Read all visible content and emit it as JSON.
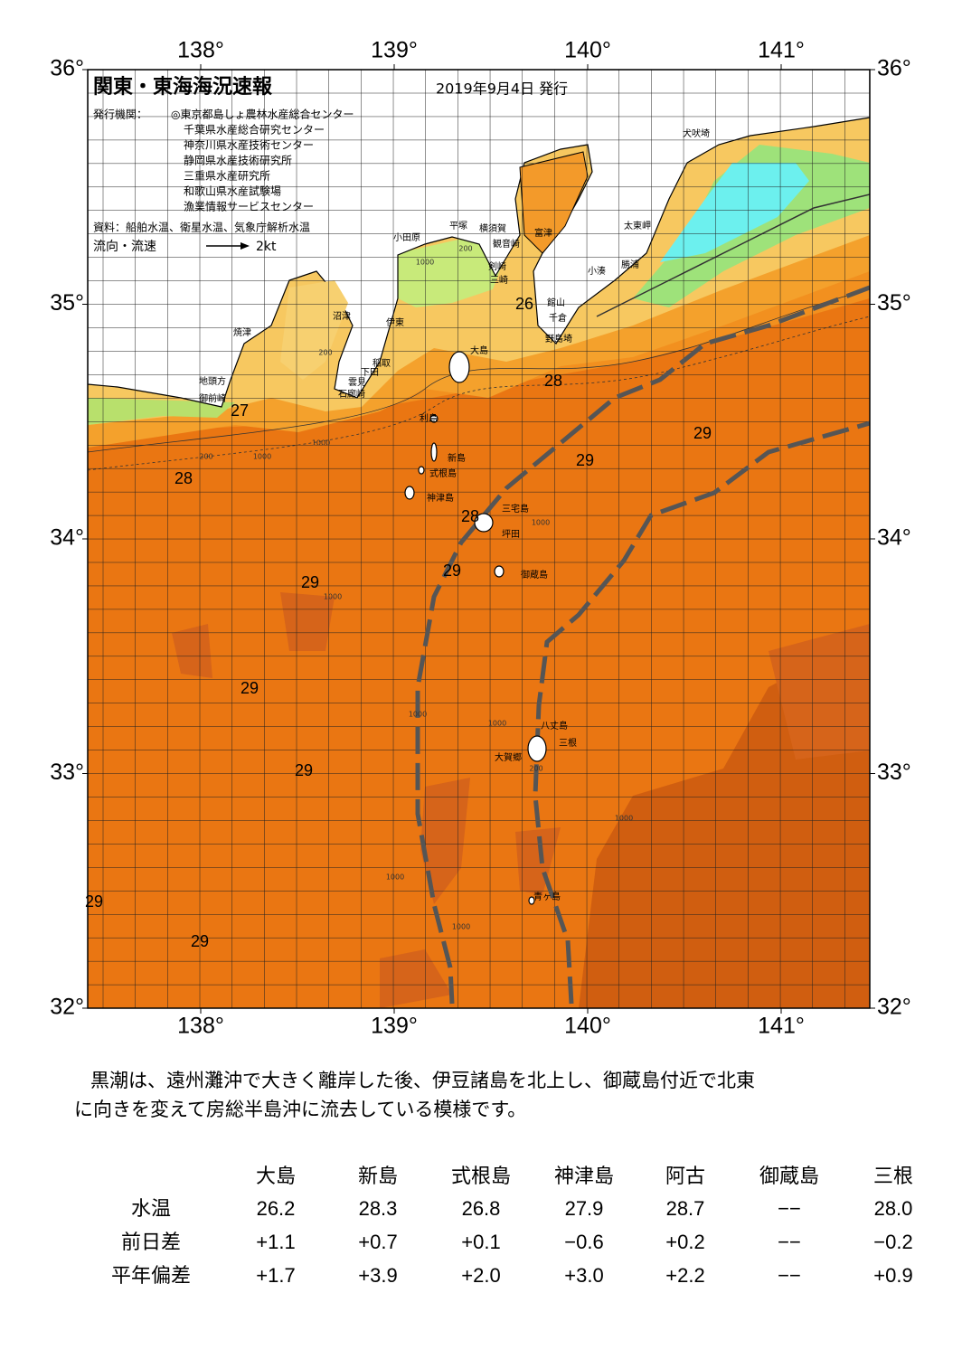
{
  "header": {
    "title": "関東・東海海況速報",
    "date": "2019年9月4日 発行",
    "issuer_label": "発行機関：",
    "issuers": [
      "◎東京都島しょ農林水産総合センター",
      "千葉県水産総合研究センター",
      "神奈川県水産技術センター",
      "静岡県水産技術研究所",
      "三重県水産研究所",
      "和歌山県水産試験場",
      "漁業情報サービスセンター"
    ],
    "source": "資料：船舶水温、衛星水温、気象庁解析水温",
    "flow_label": "流向・流速",
    "flow_scale": "2kt"
  },
  "map": {
    "lon_ticks": [
      {
        "value": 138,
        "label": "138°"
      },
      {
        "value": 139,
        "label": "139°"
      },
      {
        "value": 140,
        "label": "140°"
      },
      {
        "value": 141,
        "label": "141°"
      }
    ],
    "lat_ticks": [
      {
        "value": 32,
        "label": "32°"
      },
      {
        "value": 33,
        "label": "33°"
      },
      {
        "value": 34,
        "label": "34°"
      },
      {
        "value": 35,
        "label": "35°"
      },
      {
        "value": 36,
        "label": "36°"
      }
    ],
    "places": [
      "犬吠埼",
      "太東岬",
      "勝浦",
      "小湊",
      "館山",
      "千倉",
      "野島埼",
      "富津",
      "観音崎",
      "横須賀",
      "平塚",
      "小田原",
      "剣崎",
      "三崎",
      "沼津",
      "伊東",
      "大島",
      "稲取",
      "下田",
      "雲見",
      "石廊崎",
      "焼津",
      "地頭方",
      "御前崎",
      "利島",
      "新島",
      "式根島",
      "神津島",
      "三宅島",
      "坪田",
      "御蔵島",
      "八丈島",
      "三根",
      "大賀郷",
      "青ヶ島"
    ],
    "temperature_labels": [
      "26",
      "28",
      "27",
      "29",
      "29",
      "28",
      "28",
      "29",
      "29",
      "29",
      "29",
      "29",
      "29"
    ],
    "depth_labels": [
      "200",
      "1000",
      "200",
      "1000",
      "1000",
      "200",
      "1000",
      "1000",
      "1000",
      "1000",
      "1000",
      "1000",
      "200",
      "1000"
    ]
  },
  "summary": [
    "黒潮は、遠州灘沖で大きく離岸した後、伊豆諸島を北上し、御蔵島付近で北東",
    "に向きを変えて房総半島沖に流去している模様です。"
  ],
  "table": {
    "columns": [
      "大島",
      "新島",
      "式根島",
      "神津島",
      "阿古",
      "御蔵島",
      "三根"
    ],
    "rows": [
      {
        "label": "水温",
        "cells": [
          "26.2",
          "28.3",
          "26.8",
          "27.9",
          "28.7",
          "−−",
          "28.0"
        ]
      },
      {
        "label": "前日差",
        "cells": [
          "+1.1",
          "+0.7",
          "+0.1",
          "−0.6",
          "+0.2",
          "−−",
          "−0.2"
        ]
      },
      {
        "label": "平年偏差",
        "cells": [
          "+1.7",
          "+3.9",
          "+2.0",
          "+3.0",
          "+2.2",
          "−−",
          "+0.9"
        ]
      }
    ]
  }
}
